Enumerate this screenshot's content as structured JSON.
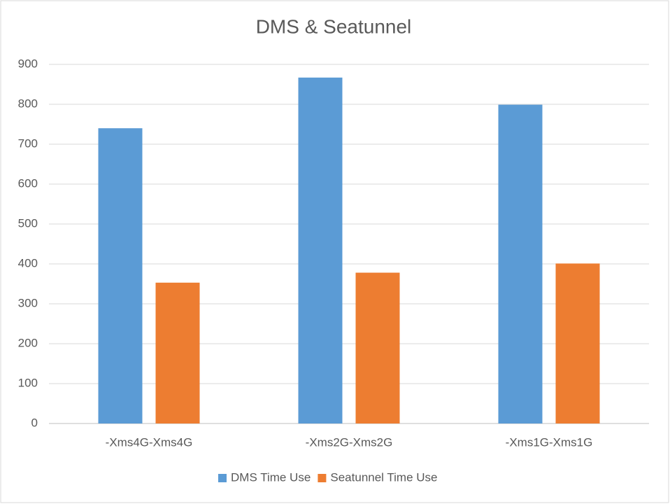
{
  "chart_data": {
    "type": "bar",
    "title": "DMS & Seatunnel",
    "categories": [
      "-Xms4G-Xms4G",
      "-Xms2G-Xms2G",
      "-Xms1G-Xms1G"
    ],
    "series": [
      {
        "name": "DMS Time Use",
        "color": "#5b9bd5",
        "values": [
          740,
          867,
          799
        ]
      },
      {
        "name": "Seatunnel Time Use",
        "color": "#ed7d31",
        "values": [
          353,
          378,
          401
        ]
      }
    ],
    "ylim": [
      0,
      900
    ],
    "yticks": [
      0,
      100,
      200,
      300,
      400,
      500,
      600,
      700,
      800,
      900
    ],
    "grid": true,
    "legend": "bottom"
  }
}
